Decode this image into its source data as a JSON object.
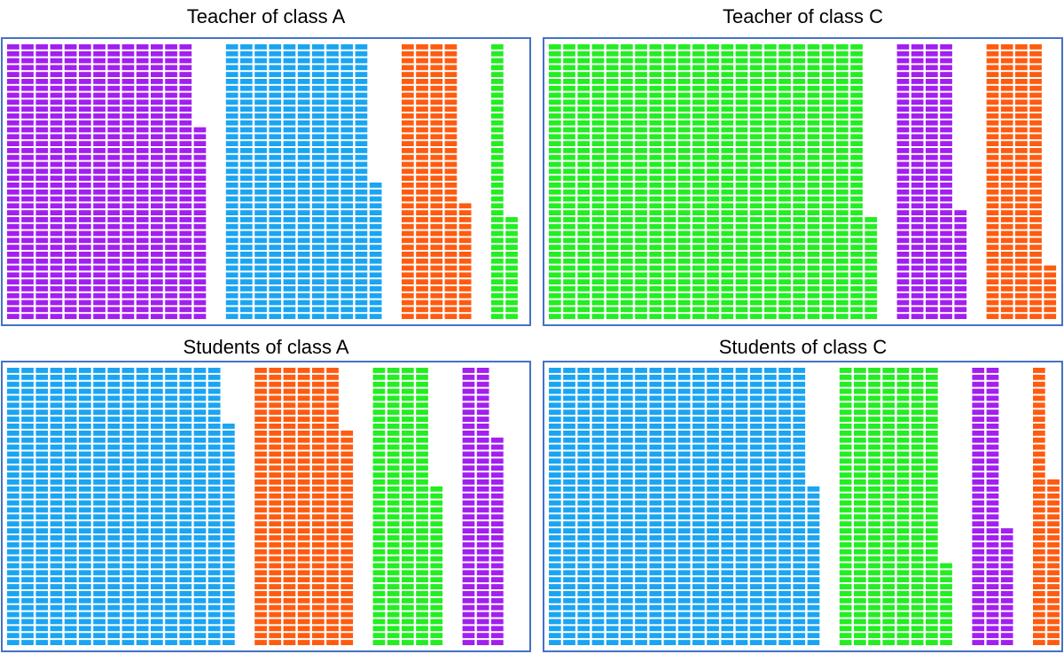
{
  "chart_data": [
    {
      "type": "waffle",
      "title": "Teacher of class A",
      "values": [
        548,
        420,
        177,
        55
      ],
      "colors": [
        "#a21ff0",
        "#1aa5f2",
        "#ff5b10",
        "#22ee22"
      ]
    },
    {
      "type": "waffle",
      "title": "Teacher of class C",
      "values": [
        895,
        176,
        168
      ],
      "colors": [
        "#22ee22",
        "#a21ff0",
        "#ff5b10"
      ]
    },
    {
      "type": "waffle",
      "title": "Students of class A",
      "values": [
        632,
        271,
        183,
        110
      ],
      "colors": [
        "#1aa5f2",
        "#ff5b10",
        "#22ee22",
        "#a21ff0"
      ]
    },
    {
      "type": "waffle",
      "title": "Students of class C",
      "values": [
        743,
        292,
        97,
        64
      ],
      "colors": [
        "#1aa5f2",
        "#22ee22",
        "#a21ff0",
        "#ff5b10"
      ]
    }
  ]
}
